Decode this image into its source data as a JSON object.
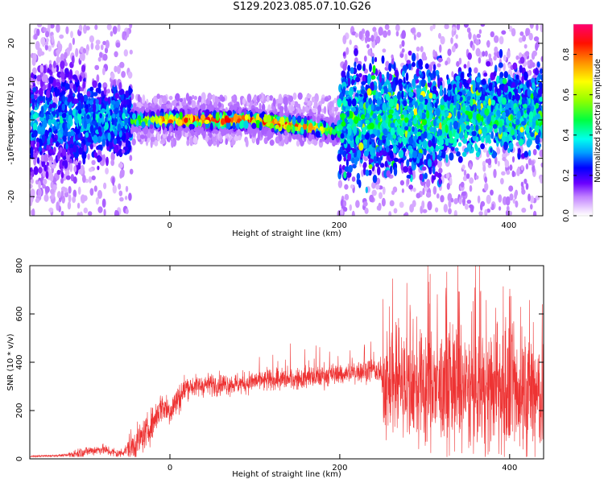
{
  "title": "S129.2023.085.07.10.G26",
  "colors": {
    "snr_line": "#ee3333",
    "colormap": [
      "#f6e6ff",
      "#c080ff",
      "#6a00ff",
      "#0000ff",
      "#00a0ff",
      "#00ffcc",
      "#00ff00",
      "#b0ff00",
      "#ffff00",
      "#ff8000",
      "#ff0000",
      "#ff0080"
    ]
  },
  "chart_data": [
    {
      "type": "heatmap",
      "name": "spectrogram",
      "xlabel": "Height of straight line (km)",
      "ylabel": "Frequency (Hz)",
      "xlim": [
        -165,
        440
      ],
      "ylim": [
        -25,
        25
      ],
      "xticks": [
        0,
        200,
        400
      ],
      "xtick_labels": [
        "0",
        "200",
        "400"
      ],
      "yticks": [
        20,
        10,
        0,
        -10,
        -20
      ],
      "ytick_labels": [
        "20",
        "10",
        "0",
        "-10",
        "-20"
      ],
      "grid": false,
      "colorbar": {
        "label": "Normalized spectral amplitude",
        "range": [
          0.0,
          0.95
        ],
        "ticks": [
          0.0,
          0.2,
          0.4,
          0.6,
          0.8
        ],
        "tick_labels": [
          "0.0",
          "0.2",
          "0.4",
          "0.6",
          "0.8"
        ]
      },
      "ridge": {
        "x": [
          -45,
          0,
          50,
          100,
          130,
          150,
          170,
          185,
          195
        ],
        "freq": [
          0,
          0,
          0,
          0,
          -1,
          -1.5,
          -2,
          -2.5,
          -3
        ],
        "amplitude": [
          0.5,
          0.8,
          0.85,
          0.8,
          0.85,
          0.8,
          0.75,
          0.6,
          0.5
        ]
      }
    },
    {
      "type": "line",
      "name": "snr",
      "xlabel": "Height of straight line (km)",
      "ylabel": "SNR (10 * v/v)",
      "xlim": [
        -165,
        440
      ],
      "ylim": [
        0,
        800
      ],
      "xticks": [
        0,
        200,
        400
      ],
      "xtick_labels": [
        "0",
        "200",
        "400"
      ],
      "yticks": [
        0,
        200,
        400,
        600,
        800
      ],
      "ytick_labels": [
        "0",
        "200",
        "400",
        "600",
        "800"
      ],
      "grid": false,
      "series": [
        {
          "x": [
            -165,
            -120,
            -100,
            -80,
            -60,
            -45,
            -30,
            -20,
            -10,
            0,
            10,
            20,
            30,
            50,
            80,
            100,
            150,
            200,
            240,
            260,
            300,
            350,
            400,
            440
          ],
          "y": [
            10,
            15,
            30,
            40,
            20,
            50,
            100,
            150,
            220,
            200,
            250,
            300,
            300,
            310,
            310,
            320,
            330,
            350,
            370,
            300,
            280,
            280,
            270,
            250
          ]
        }
      ]
    }
  ]
}
